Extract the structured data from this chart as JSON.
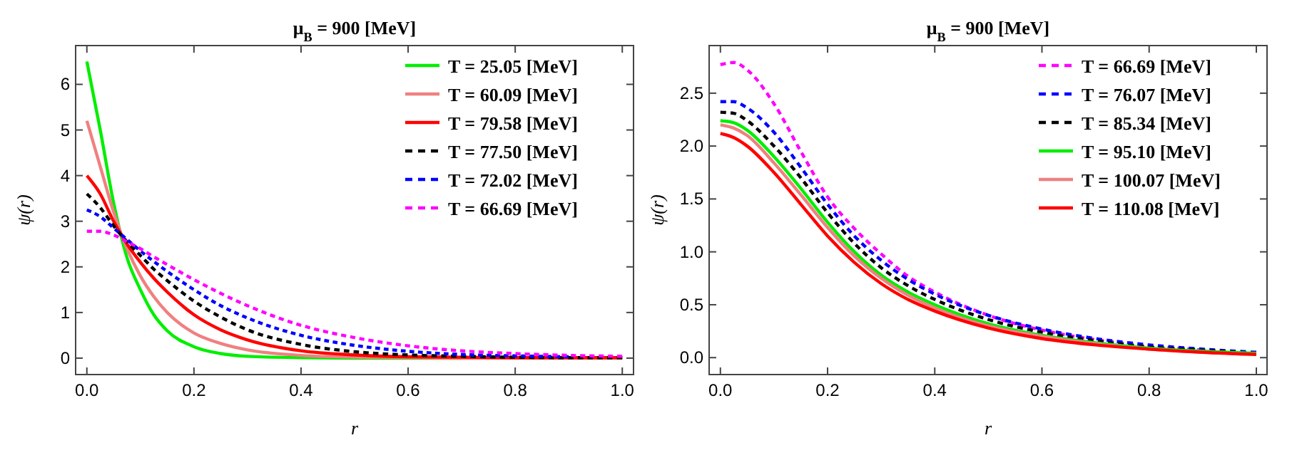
{
  "chart_data": [
    {
      "type": "line",
      "title": "μ$_{B}$ = 900 [MeV]",
      "xlabel": "r",
      "ylabel": "ψ(r)",
      "legend": "top right",
      "grid": false,
      "marker": "none",
      "xlim": [
        -0.021,
        1.021
      ],
      "ylim": [
        -0.36,
        6.85
      ],
      "xticks": [
        {
          "value": 0,
          "label": "0.0"
        },
        {
          "value": 0.2,
          "label": "0.2"
        },
        {
          "value": 0.4,
          "label": "0.4"
        },
        {
          "value": 0.6,
          "label": "0.6"
        },
        {
          "value": 0.8,
          "label": "0.8"
        },
        {
          "value": 1,
          "label": "1.0"
        }
      ],
      "yticks": [
        0,
        1,
        2,
        3,
        4,
        5,
        6
      ],
      "x": [
        0,
        0.025,
        0.05,
        0.075,
        0.1,
        0.125,
        0.15,
        0.2,
        0.25,
        0.3,
        0.4,
        0.5,
        0.6,
        0.7,
        0.8,
        0.9,
        1
      ],
      "series": [
        {
          "name": "T = 25.05 [MeV]",
          "color": "#00ee00",
          "line_style": "solid",
          "values": [
            6.5,
            5.0,
            3.4,
            2.2,
            1.5,
            0.95,
            0.6,
            0.25,
            0.1,
            0.04,
            0.01,
            0,
            0,
            0,
            null,
            null,
            null
          ]
        },
        {
          "name": "T = 60.09 [MeV]",
          "color": "#f08080",
          "line_style": "solid",
          "values": [
            5.2,
            4.2,
            3.2,
            2.4,
            1.8,
            1.35,
            1.0,
            0.55,
            0.32,
            0.18,
            0.06,
            0.02,
            0.01,
            0,
            0,
            0,
            0
          ]
        },
        {
          "name": "T = 79.58 [MeV]",
          "color": "#ff0000",
          "line_style": "solid",
          "values": [
            4.0,
            3.6,
            3.0,
            2.5,
            2.1,
            1.75,
            1.45,
            0.95,
            0.62,
            0.4,
            0.16,
            0.07,
            0.03,
            0.02,
            0.01,
            0.01,
            0.01
          ]
        },
        {
          "name": "T = 77.50 [MeV]",
          "color": "#000000",
          "line_style": "dashed",
          "values": [
            3.6,
            3.3,
            2.9,
            2.55,
            2.25,
            1.95,
            1.7,
            1.25,
            0.9,
            0.62,
            0.3,
            0.14,
            0.07,
            0.04,
            0.02,
            0.01,
            0.01
          ]
        },
        {
          "name": "T = 72.02 [MeV]",
          "color": "#0000ff",
          "line_style": "dashed",
          "values": [
            3.25,
            3.1,
            2.85,
            2.6,
            2.35,
            2.12,
            1.9,
            1.5,
            1.15,
            0.88,
            0.5,
            0.28,
            0.15,
            0.08,
            0.05,
            0.03,
            null
          ]
        },
        {
          "name": "T = 66.69 [MeV]",
          "color": "#ff00ff",
          "line_style": "dashed",
          "values": [
            2.78,
            2.78,
            2.7,
            2.55,
            2.4,
            2.22,
            2.05,
            1.72,
            1.42,
            1.15,
            0.72,
            0.45,
            0.27,
            0.16,
            0.1,
            0.06,
            0.04
          ]
        }
      ]
    },
    {
      "type": "line",
      "title": "μ$_{B}$ = 900 [MeV]",
      "xlabel": "r",
      "ylabel": "ψ(r)",
      "legend": "top right",
      "grid": false,
      "marker": "none",
      "xlim": [
        -0.021,
        1.02
      ],
      "ylim": [
        -0.16,
        2.95
      ],
      "xticks": [
        {
          "value": 0,
          "label": "0.0"
        },
        {
          "value": 0.2,
          "label": "0.2"
        },
        {
          "value": 0.4,
          "label": "0.4"
        },
        {
          "value": 0.6,
          "label": "0.6"
        },
        {
          "value": 0.8,
          "label": "0.8"
        },
        {
          "value": 1,
          "label": "1.0"
        }
      ],
      "yticks": [
        {
          "value": 0,
          "label": "0.0"
        },
        0.5,
        {
          "value": 1,
          "label": "1.0"
        },
        1.5,
        {
          "value": 2,
          "label": "2.0"
        },
        2.5
      ],
      "x": [
        0,
        0.025,
        0.05,
        0.1,
        0.15,
        0.2,
        0.25,
        0.3,
        0.35,
        0.4,
        0.5,
        0.6,
        0.7,
        0.8,
        0.9,
        1
      ],
      "series": [
        {
          "name": "T = 66.69 [MeV]",
          "color": "#ff00ff",
          "line_style": "dashed",
          "values": [
            2.77,
            2.79,
            2.72,
            2.4,
            1.95,
            1.52,
            1.22,
            0.98,
            0.77,
            0.62,
            0.4,
            0.26,
            0.17,
            0.11,
            0.07,
            null
          ]
        },
        {
          "name": "T = 76.07 [MeV]",
          "color": "#0000ff",
          "line_style": "dashed",
          "values": [
            2.42,
            2.42,
            2.36,
            2.13,
            1.8,
            1.45,
            1.15,
            0.92,
            0.74,
            0.6,
            0.4,
            0.27,
            0.18,
            0.12,
            0.08,
            0.05
          ]
        },
        {
          "name": "T = 85.34 [MeV]",
          "color": "#000000",
          "line_style": "dashed",
          "values": [
            2.32,
            2.31,
            2.24,
            2.0,
            1.7,
            1.37,
            1.08,
            0.85,
            0.68,
            0.55,
            0.36,
            0.24,
            0.16,
            0.1,
            0.07,
            0.04
          ]
        },
        {
          "name": "T = 95.10 [MeV]",
          "color": "#00ee00",
          "line_style": "solid",
          "values": [
            2.24,
            2.22,
            2.15,
            1.9,
            1.6,
            1.28,
            1.0,
            0.78,
            0.62,
            0.5,
            0.32,
            0.21,
            0.14,
            0.09,
            0.06,
            0.04
          ]
        },
        {
          "name": "T = 100.07 [MeV]",
          "color": "#f08080",
          "line_style": "solid",
          "values": [
            2.2,
            2.17,
            2.1,
            1.84,
            1.54,
            1.23,
            0.96,
            0.75,
            0.59,
            0.47,
            0.3,
            0.2,
            0.13,
            0.08,
            0.05,
            0.03
          ]
        },
        {
          "name": "T = 110.08 [MeV]",
          "color": "#ff0000",
          "line_style": "solid",
          "values": [
            2.12,
            2.08,
            2.0,
            1.75,
            1.45,
            1.15,
            0.9,
            0.7,
            0.55,
            0.44,
            0.28,
            0.18,
            0.12,
            0.08,
            0.05,
            0.03
          ]
        }
      ]
    }
  ]
}
